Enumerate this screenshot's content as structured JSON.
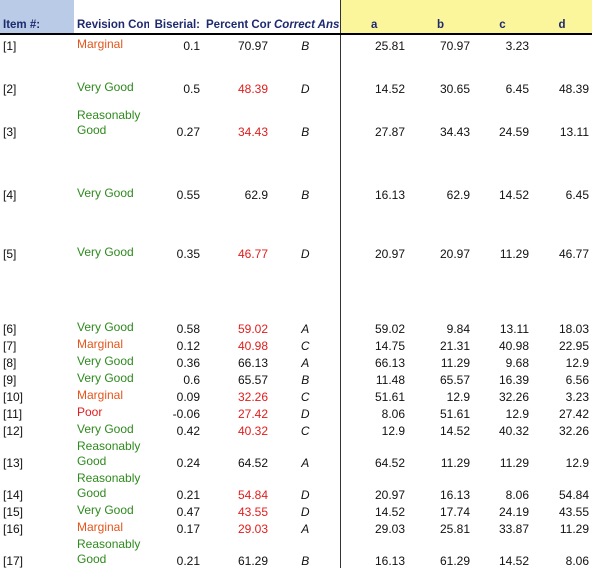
{
  "headers": {
    "item": "Item #:",
    "revision": "Revision Comments",
    "biserial": "Biserial:",
    "percent": "Percent Correct:",
    "answer": "Correct Answer:",
    "a": "a",
    "b": "b",
    "c": "c",
    "d": "d"
  },
  "colors": {
    "header_blue": "#b9cbe6",
    "header_yellow": "#fbf59c",
    "comment_green": "#2e8a1e",
    "comment_orange": "#e2561d",
    "value_red": "#e11d1d"
  },
  "rows": [
    {
      "item": "[1]",
      "comment": "Marginal",
      "biserial": "0.1",
      "percent": "70.97",
      "answer": "B",
      "a": "25.81",
      "b": "70.97",
      "c": "3.23",
      "d": ""
    },
    {
      "item": "[2]",
      "comment": "Very Good",
      "biserial": "0.5",
      "percent": "48.39",
      "answer": "D",
      "a": "14.52",
      "b": "30.65",
      "c": "6.45",
      "d": "48.39"
    },
    {
      "item": "[3]",
      "comment": "Reasonably Good",
      "biserial": "0.27",
      "percent": "34.43",
      "answer": "B",
      "a": "27.87",
      "b": "34.43",
      "c": "24.59",
      "d": "13.11"
    },
    {
      "item": "[4]",
      "comment": "Very Good",
      "biserial": "0.55",
      "percent": "62.9",
      "answer": "B",
      "a": "16.13",
      "b": "62.9",
      "c": "14.52",
      "d": "6.45"
    },
    {
      "item": "[5]",
      "comment": "Very Good",
      "biserial": "0.35",
      "percent": "46.77",
      "answer": "D",
      "a": "20.97",
      "b": "20.97",
      "c": "11.29",
      "d": "46.77"
    },
    {
      "item": "[6]",
      "comment": "Very Good",
      "biserial": "0.58",
      "percent": "59.02",
      "answer": "A",
      "a": "59.02",
      "b": "9.84",
      "c": "13.11",
      "d": "18.03"
    },
    {
      "item": "[7]",
      "comment": "Marginal",
      "biserial": "0.12",
      "percent": "40.98",
      "answer": "C",
      "a": "14.75",
      "b": "21.31",
      "c": "40.98",
      "d": "22.95"
    },
    {
      "item": "[8]",
      "comment": "Very Good",
      "biserial": "0.36",
      "percent": "66.13",
      "answer": "A",
      "a": "66.13",
      "b": "11.29",
      "c": "9.68",
      "d": "12.9"
    },
    {
      "item": "[9]",
      "comment": "Very Good",
      "biserial": "0.6",
      "percent": "65.57",
      "answer": "B",
      "a": "11.48",
      "b": "65.57",
      "c": "16.39",
      "d": "6.56"
    },
    {
      "item": "[10]",
      "comment": "Marginal",
      "biserial": "0.09",
      "percent": "32.26",
      "answer": "C",
      "a": "51.61",
      "b": "12.9",
      "c": "32.26",
      "d": "3.23"
    },
    {
      "item": "[11]",
      "comment": "Poor",
      "biserial": "-0.06",
      "percent": "27.42",
      "answer": "D",
      "a": "8.06",
      "b": "51.61",
      "c": "12.9",
      "d": "27.42"
    },
    {
      "item": "[12]",
      "comment": "Very Good",
      "biserial": "0.42",
      "percent": "40.32",
      "answer": "C",
      "a": "12.9",
      "b": "14.52",
      "c": "40.32",
      "d": "32.26"
    },
    {
      "item": "[13]",
      "comment": "Reasonably Good",
      "biserial": "0.24",
      "percent": "64.52",
      "answer": "A",
      "a": "64.52",
      "b": "11.29",
      "c": "11.29",
      "d": "12.9"
    },
    {
      "item": "[14]",
      "comment": "Reasonably Good",
      "biserial": "0.21",
      "percent": "54.84",
      "answer": "D",
      "a": "20.97",
      "b": "16.13",
      "c": "8.06",
      "d": "54.84"
    },
    {
      "item": "[15]",
      "comment": "Very Good",
      "biserial": "0.47",
      "percent": "43.55",
      "answer": "D",
      "a": "14.52",
      "b": "17.74",
      "c": "24.19",
      "d": "43.55"
    },
    {
      "item": "[16]",
      "comment": "Marginal",
      "biserial": "0.17",
      "percent": "29.03",
      "answer": "A",
      "a": "29.03",
      "b": "25.81",
      "c": "33.87",
      "d": "11.29"
    },
    {
      "item": "[17]",
      "comment": "Reasonably Good",
      "biserial": "0.21",
      "percent": "61.29",
      "answer": "B",
      "a": "16.13",
      "b": "61.29",
      "c": "14.52",
      "d": "8.06"
    }
  ]
}
